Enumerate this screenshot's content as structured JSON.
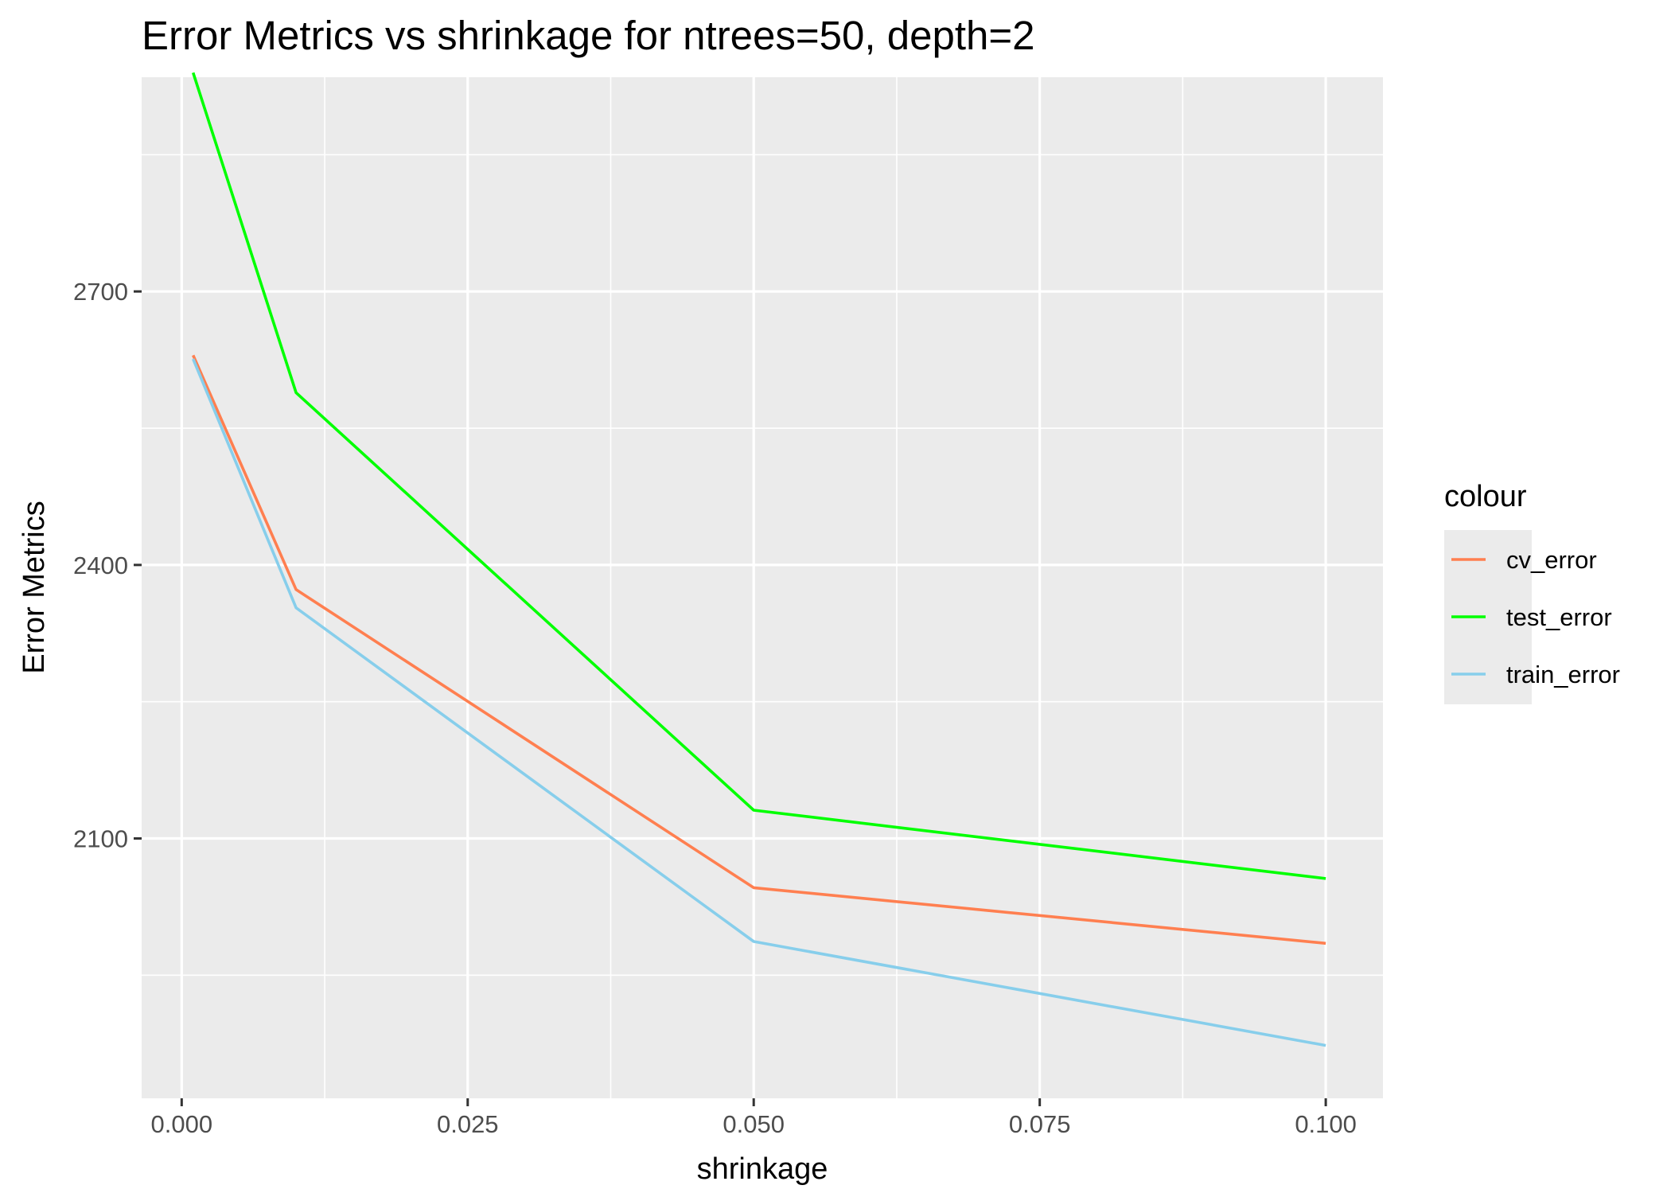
{
  "chart_data": {
    "type": "line",
    "title": "Error Metrics vs shrinkage for ntrees=50, depth=2",
    "xlabel": "shrinkage",
    "ylabel": "Error Metrics",
    "xlim": [
      -0.0035,
      0.105
    ],
    "ylim": [
      1815,
      2935
    ],
    "x_ticks": [
      0.0,
      0.025,
      0.05,
      0.075,
      0.1
    ],
    "x_tick_labels": [
      "0.000",
      "0.025",
      "0.050",
      "0.075",
      "0.100"
    ],
    "y_ticks": [
      2100,
      2400,
      2700
    ],
    "y_tick_labels": [
      "2100",
      "2400",
      "2700"
    ],
    "grid": true,
    "x": [
      0.001,
      0.01,
      0.05,
      0.1
    ],
    "series": [
      {
        "name": "cv_error",
        "color": "#FF7F50",
        "values": [
          2630,
          2373,
          2046,
          1985
        ]
      },
      {
        "name": "test_error",
        "color": "#00FF00",
        "values": [
          2940,
          2589,
          2131,
          2056
        ]
      },
      {
        "name": "train_error",
        "color": "#87CEEB",
        "values": [
          2626,
          2353,
          1987,
          1873
        ]
      }
    ],
    "legend": {
      "title": "colour",
      "position": "right"
    }
  }
}
